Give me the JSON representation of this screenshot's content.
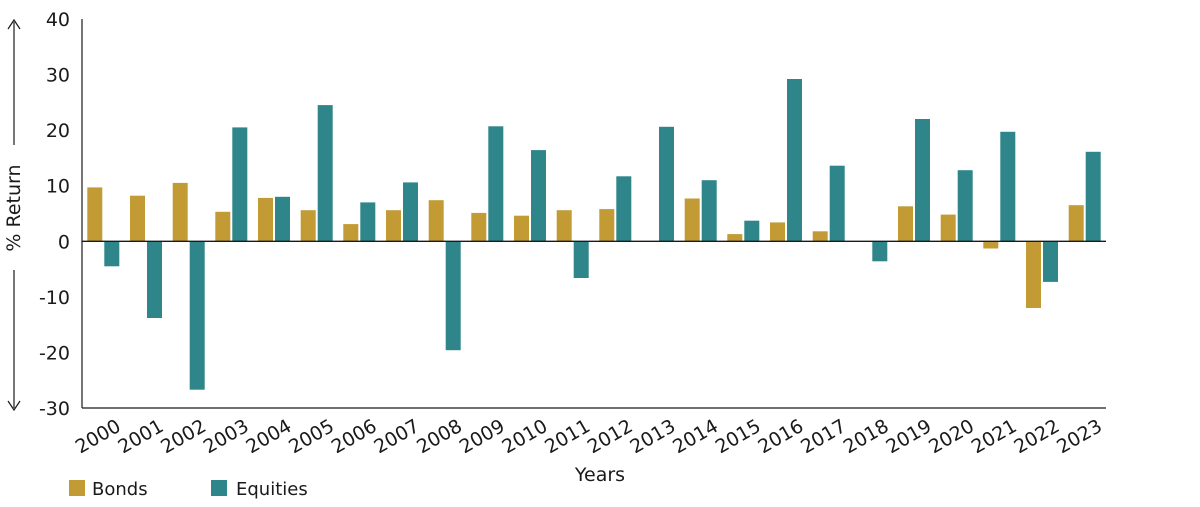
{
  "chart_data": {
    "type": "bar",
    "title": "",
    "xlabel": "Years",
    "ylabel": "% Return",
    "ylim": [
      -30,
      40
    ],
    "yticks": [
      40,
      30,
      20,
      10,
      0,
      -10,
      -20,
      -30
    ],
    "grid": false,
    "legend_position": "bottom-left",
    "categories": [
      "2000",
      "2001",
      "2002",
      "2003",
      "2004",
      "2005",
      "2006",
      "2007",
      "2008",
      "2009",
      "2010",
      "2011",
      "2012",
      "2013",
      "2014",
      "2015",
      "2016",
      "2017",
      "2018",
      "2019",
      "2020",
      "2021",
      "2022",
      "2023"
    ],
    "series": [
      {
        "name": "Bonds",
        "color": "#C29B35",
        "values": [
          9.7,
          8.2,
          10.5,
          5.3,
          7.8,
          5.6,
          3.1,
          5.6,
          7.4,
          5.1,
          4.6,
          5.6,
          5.8,
          0,
          7.7,
          1.3,
          3.4,
          1.8,
          0,
          6.3,
          4.8,
          -1.3,
          -12.0,
          6.5
        ]
      },
      {
        "name": "Equities",
        "color": "#2E868A",
        "values": [
          -4.5,
          -13.8,
          -26.7,
          20.5,
          8.0,
          24.5,
          7.0,
          10.6,
          -19.6,
          20.7,
          16.4,
          -6.6,
          11.7,
          20.6,
          11.0,
          3.7,
          29.2,
          13.6,
          -3.6,
          22.0,
          12.8,
          19.7,
          -7.3,
          16.1
        ]
      }
    ]
  }
}
